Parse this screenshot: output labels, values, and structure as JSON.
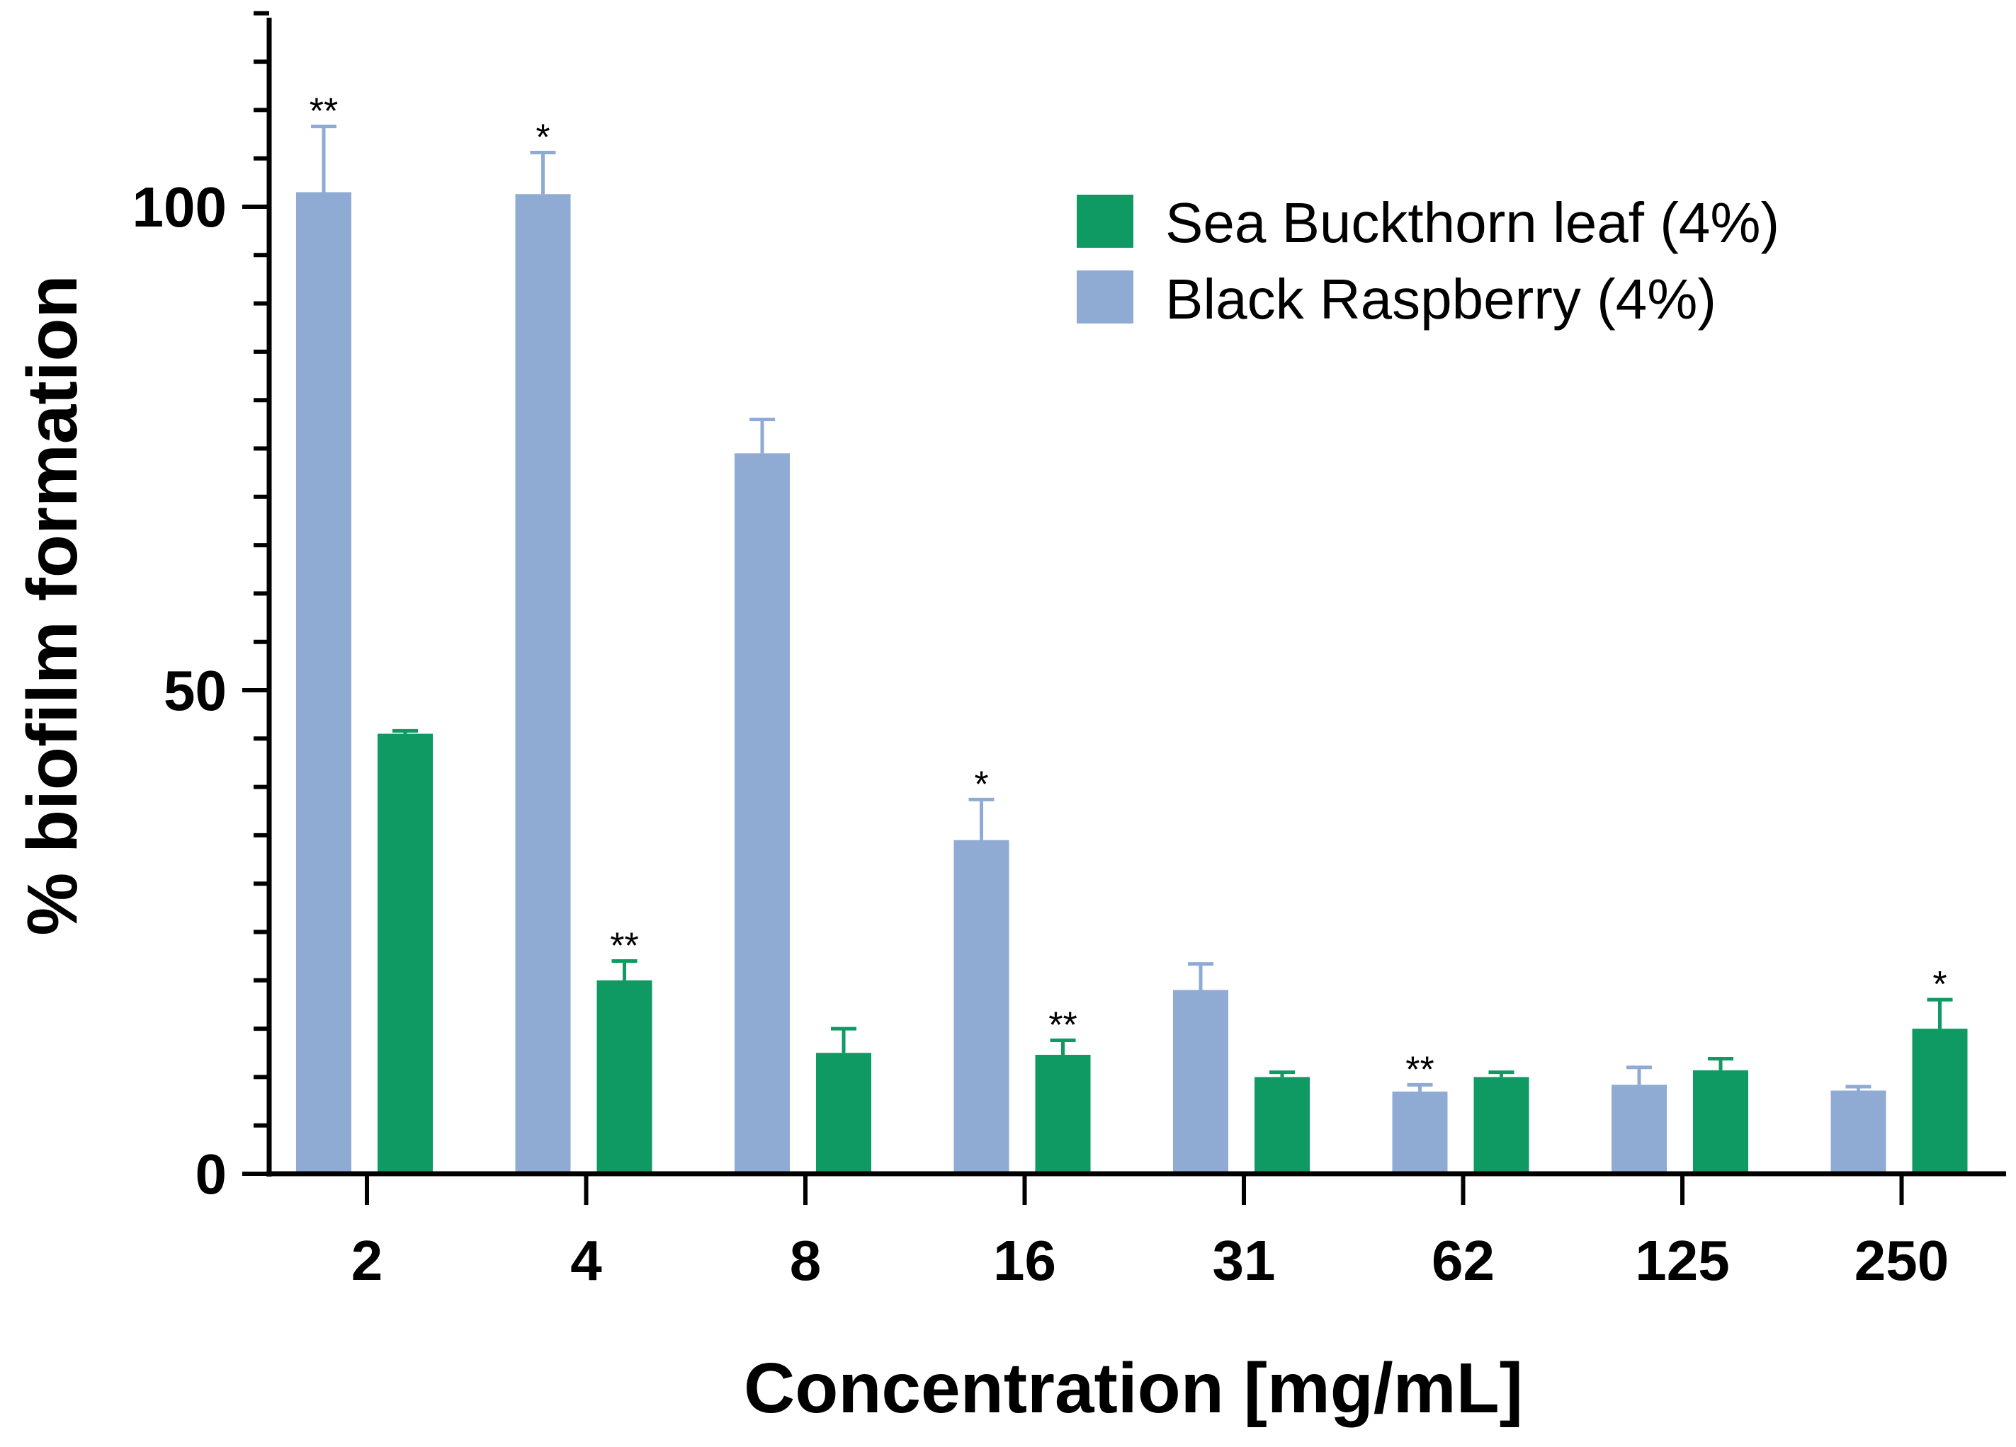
{
  "chart_data": {
    "type": "bar",
    "xlabel": "Concentration [mg/mL]",
    "ylabel": "% biofilm formation",
    "ylim": [
      0,
      120
    ],
    "yticks_major": [
      0,
      50,
      100
    ],
    "yticks_minor_step": 5,
    "categories": [
      "2",
      "4",
      "8",
      "16",
      "31",
      "62",
      "125",
      "250"
    ],
    "legend_position": "top-right",
    "series": [
      {
        "name": "Sea Buckthorn leaf (4%)",
        "color": "#0f9a63",
        "values": [
          45.5,
          20,
          12.5,
          12.3,
          10,
          10,
          10.7,
          15
        ],
        "errors": [
          0.3,
          2,
          2.5,
          1.5,
          0.5,
          0.5,
          1.2,
          3
        ],
        "significance": [
          "",
          "**",
          "",
          "**",
          "",
          "",
          "",
          "*"
        ]
      },
      {
        "name": "Black Raspberry (4%)",
        "color": "#8fabd3",
        "values": [
          101.5,
          101.3,
          74.5,
          34.5,
          19,
          8.5,
          9.2,
          8.6
        ],
        "errors": [
          6.8,
          4.3,
          3.5,
          4.2,
          2.7,
          0.7,
          1.8,
          0.4
        ],
        "significance": [
          "**",
          "*",
          "",
          "*",
          "",
          "**",
          "",
          ""
        ]
      }
    ],
    "plot_order": [
      "Black Raspberry (4%)",
      "Sea Buckthorn leaf (4%)"
    ]
  }
}
